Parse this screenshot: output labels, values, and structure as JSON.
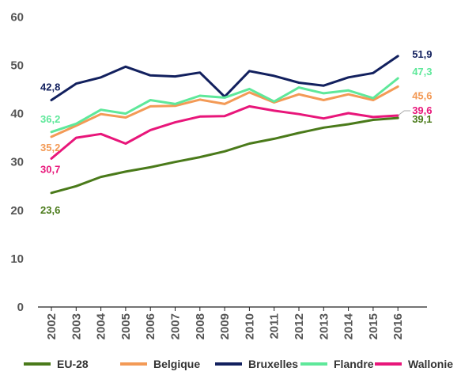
{
  "chart_data": {
    "type": "line",
    "x": [
      "2002",
      "2003",
      "2004",
      "2005",
      "2006",
      "2007",
      "2008",
      "2009",
      "2010",
      "2011",
      "2012",
      "2013",
      "2014",
      "2015",
      "2016"
    ],
    "ylim": [
      0,
      60
    ],
    "yticks": [
      "0",
      "10",
      "20",
      "30",
      "40",
      "50",
      "60"
    ],
    "grid": false,
    "legend_position": "bottom",
    "series": [
      {
        "name": "EU-28",
        "color": "#4a7a1a",
        "values": [
          23.6,
          25.0,
          26.9,
          28.0,
          28.9,
          30.0,
          31.0,
          32.2,
          33.8,
          34.8,
          36.0,
          37.1,
          37.8,
          38.7,
          39.1
        ],
        "labels": {
          "first": "23,6",
          "last": "39,1"
        }
      },
      {
        "name": "Belgique",
        "color": "#f39a56",
        "values": [
          35.2,
          37.5,
          39.9,
          39.2,
          41.5,
          41.6,
          42.9,
          42.0,
          44.4,
          42.3,
          44.0,
          42.8,
          44.0,
          42.8,
          45.6
        ],
        "labels": {
          "first": "35,2",
          "last": "45,6"
        }
      },
      {
        "name": "Bruxelles",
        "color": "#12205e",
        "values": [
          42.8,
          46.2,
          47.5,
          49.7,
          47.9,
          47.7,
          48.5,
          43.5,
          48.8,
          47.8,
          46.4,
          45.8,
          47.5,
          48.4,
          51.9
        ],
        "labels": {
          "first": "42,8",
          "last": "51,9"
        }
      },
      {
        "name": "Flandre",
        "color": "#5ee89a",
        "values": [
          36.2,
          37.9,
          40.8,
          40.0,
          42.8,
          42.0,
          43.7,
          43.3,
          45.1,
          42.5,
          45.4,
          44.2,
          44.8,
          43.2,
          47.3
        ],
        "labels": {
          "first": "36,2",
          "last": "47,3"
        }
      },
      {
        "name": "Wallonie",
        "color": "#e8167a",
        "values": [
          30.7,
          35.0,
          35.8,
          33.8,
          36.6,
          38.2,
          39.4,
          39.5,
          41.5,
          40.6,
          39.9,
          39.0,
          40.1,
          39.3,
          39.6
        ],
        "labels": {
          "first": "30,7",
          "last": "39,6"
        }
      }
    ]
  }
}
